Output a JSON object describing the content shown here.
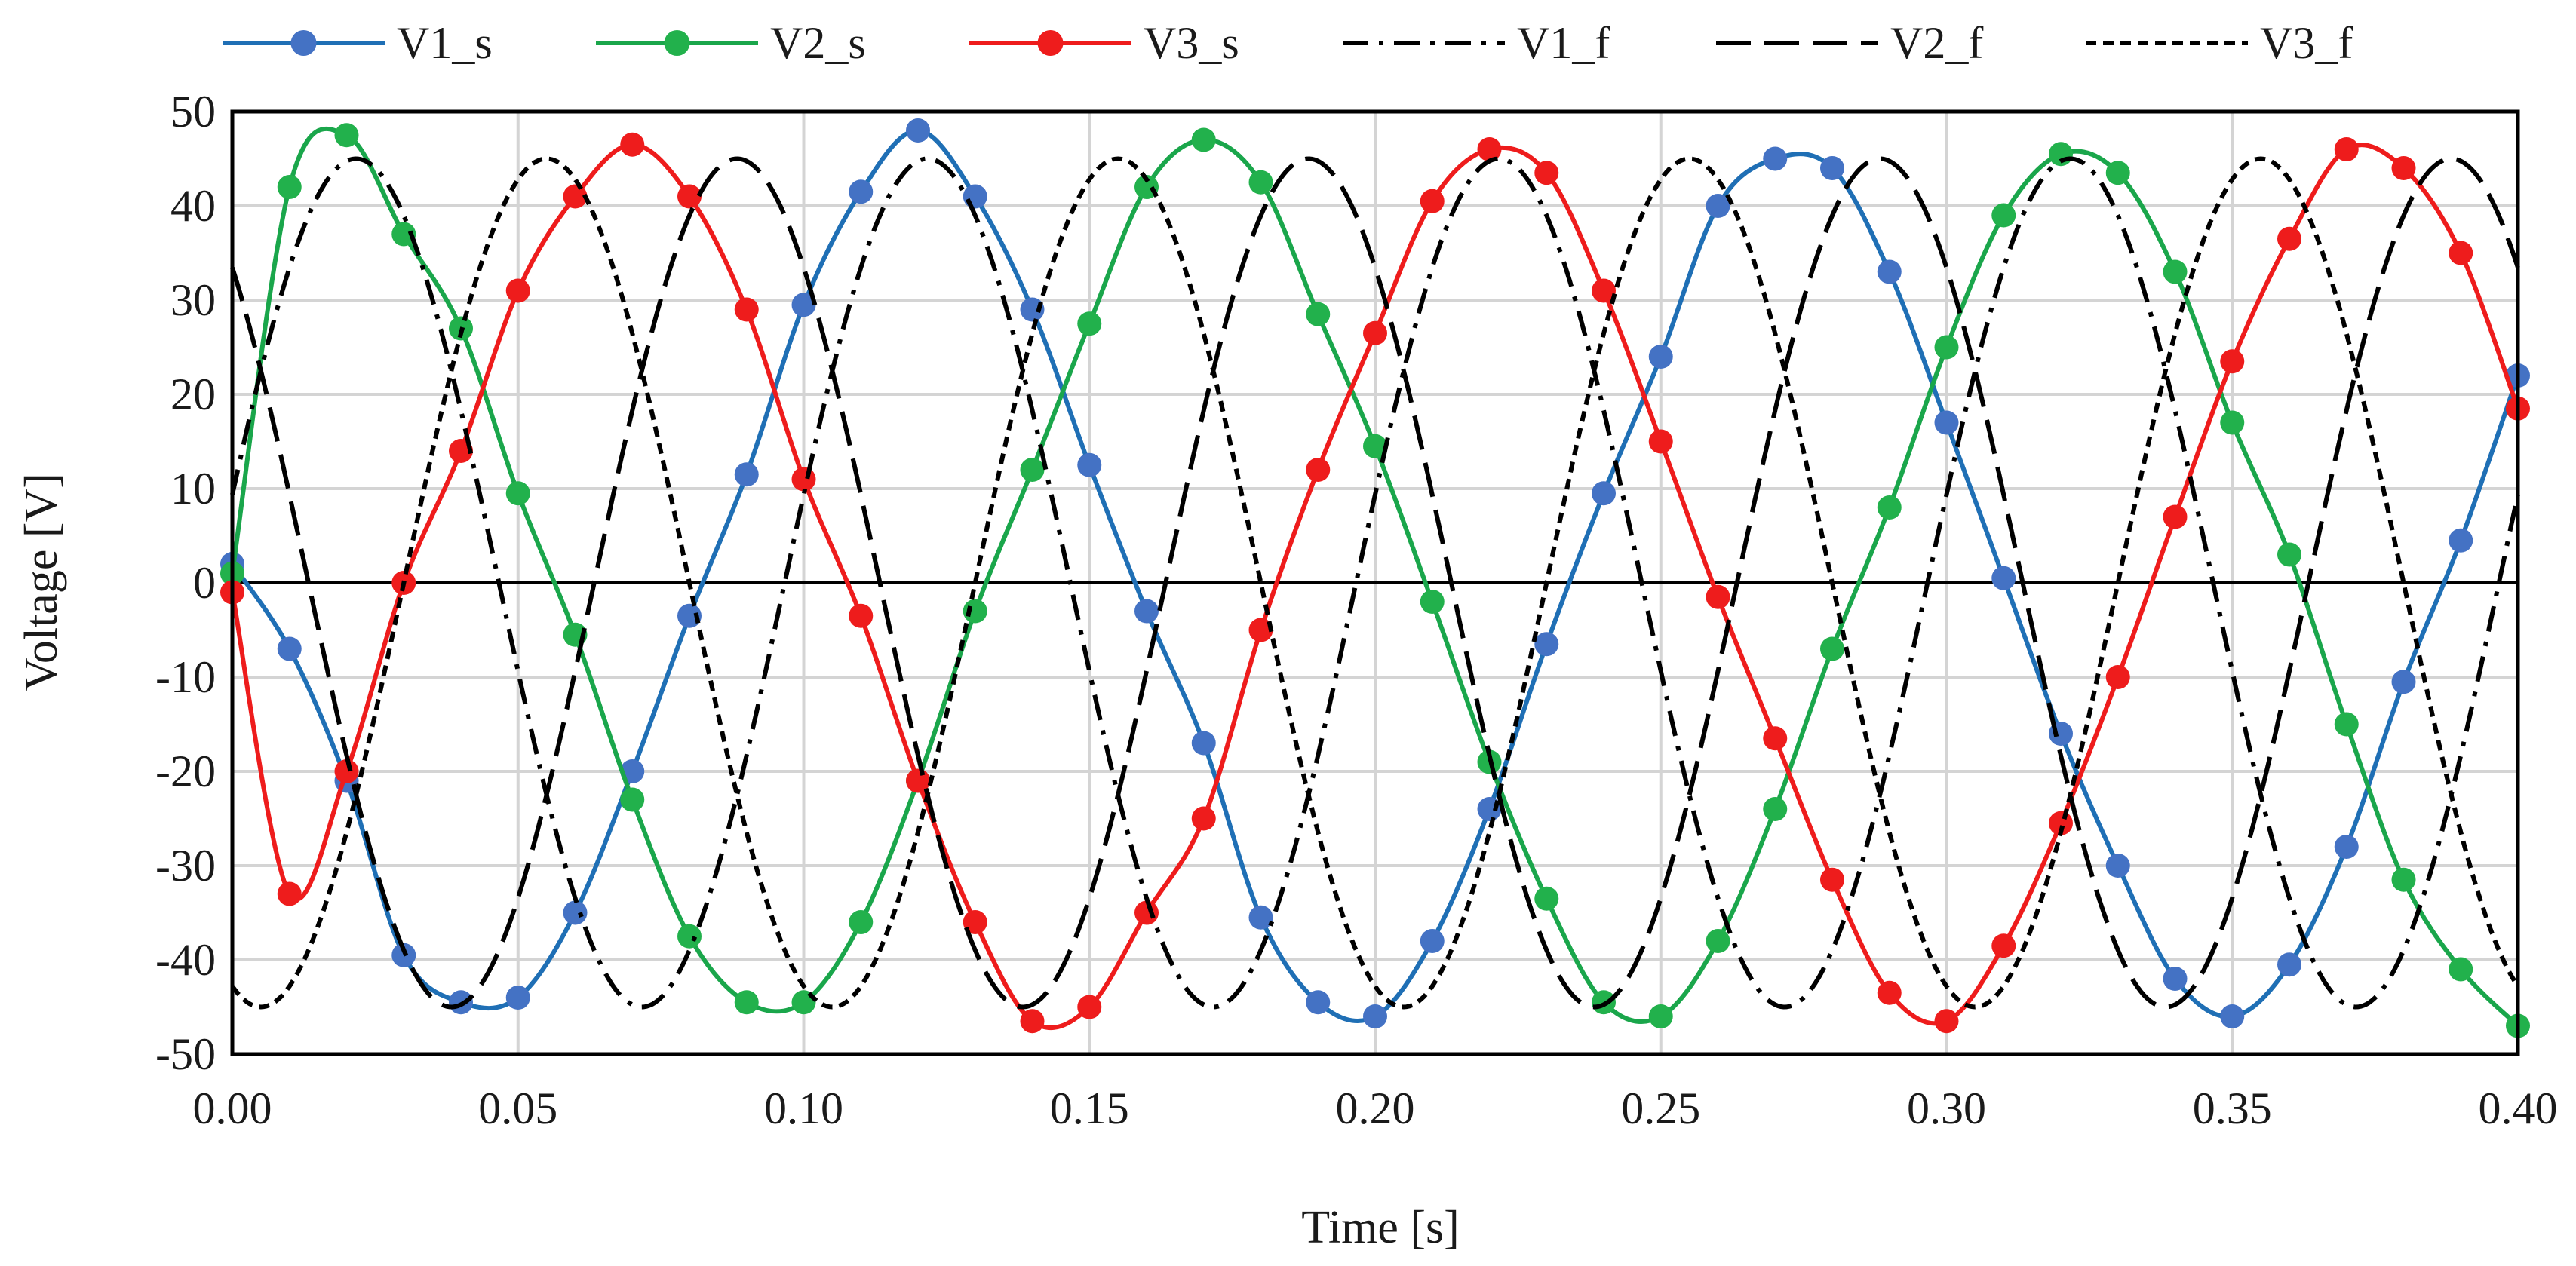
{
  "chart_data": {
    "type": "line",
    "title": "",
    "xlabel": "Time [s]",
    "ylabel": "Voltage [V]",
    "xlim": [
      0,
      0.4
    ],
    "ylim": [
      -50,
      50
    ],
    "x_ticks": [
      "0.00",
      "0.05",
      "0.10",
      "0.15",
      "0.20",
      "0.25",
      "0.30",
      "0.35",
      "0.40"
    ],
    "y_ticks": [
      "50",
      "40",
      "30",
      "20",
      "10",
      "0",
      "-10",
      "-20",
      "-30",
      "-40",
      "-50"
    ],
    "grid": true,
    "legend_position": "top",
    "x": [
      0.0,
      0.01,
      0.02,
      0.03,
      0.04,
      0.05,
      0.06,
      0.07,
      0.08,
      0.09,
      0.1,
      0.11,
      0.12,
      0.13,
      0.14,
      0.15,
      0.16,
      0.17,
      0.18,
      0.19,
      0.2,
      0.21,
      0.22,
      0.23,
      0.24,
      0.25,
      0.26,
      0.27,
      0.28,
      0.29,
      0.3,
      0.31,
      0.32,
      0.33,
      0.34,
      0.35,
      0.36,
      0.37,
      0.38,
      0.39,
      0.4
    ],
    "series": [
      {
        "name": "V1_s",
        "style": "marker-line",
        "color": "#1f6fb5",
        "marker_color": "#4472c4",
        "values": [
          2,
          -7,
          -21,
          -39.5,
          -44.5,
          -44,
          -35,
          -20,
          -3.5,
          11.5,
          29.5,
          41.5,
          48,
          41,
          29,
          12.5,
          -3,
          -17,
          -35.5,
          -44.5,
          -46,
          -38,
          -24,
          -6.5,
          9.5,
          24,
          40,
          45,
          44,
          33,
          17,
          0.5,
          -16,
          -30,
          -42,
          -46,
          -40.5,
          -28,
          -10.5,
          4.5,
          22
        ]
      },
      {
        "name": "V2_s",
        "style": "marker-line",
        "color": "#1aa64b",
        "marker_color": "#22b14c",
        "values": [
          1,
          42,
          47.5,
          37,
          27,
          9.5,
          -5.5,
          -23,
          -37.5,
          -44.5,
          -44.5,
          -36,
          -21,
          -3,
          12,
          27.5,
          42,
          47,
          42.5,
          28.5,
          14.5,
          -2,
          -19,
          -33.5,
          -44.5,
          -46,
          -38,
          -24,
          -7,
          8,
          25,
          39,
          45.5,
          43.5,
          33,
          17,
          3,
          -15,
          -31.5,
          -41,
          -47
        ]
      },
      {
        "name": "V3_s",
        "style": "marker-line",
        "color": "#ee1c1c",
        "marker_color": "#ee1c1c",
        "values": [
          -1,
          -33,
          -20,
          0,
          14,
          31,
          41,
          46.5,
          41,
          29,
          11,
          -3.5,
          -21,
          -36,
          -46.5,
          -45,
          -35,
          -25,
          -5,
          12,
          26.5,
          40.5,
          46,
          43.5,
          31,
          15,
          -1.5,
          -16.5,
          -31.5,
          -43.5,
          -46.5,
          -38.5,
          -25.5,
          -10,
          7,
          23.5,
          36.5,
          46,
          44,
          35,
          18.5
        ]
      },
      {
        "name": "V1_f",
        "style": "dash-dot",
        "color": "#000000",
        "amplitude": 45,
        "frequency_hz": 10,
        "phase_deg": 12
      },
      {
        "name": "V2_f",
        "style": "long-dash",
        "color": "#000000",
        "amplitude": 45,
        "frequency_hz": 10,
        "phase_deg": 132
      },
      {
        "name": "V3_f",
        "style": "short-dash",
        "color": "#000000",
        "amplitude": 45,
        "frequency_hz": 10,
        "phase_deg": -108
      }
    ]
  }
}
